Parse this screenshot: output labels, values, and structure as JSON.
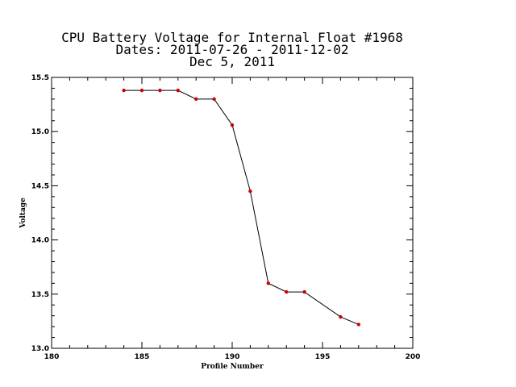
{
  "chart_data": {
    "type": "line",
    "title_lines": [
      "CPU Battery Voltage for Internal Float #1968",
      "Dates:  2011-07-26 -  2011-12-02",
      "Dec  5, 2011"
    ],
    "xlabel": "Profile Number",
    "ylabel": "Voltage",
    "xlim": [
      180,
      200
    ],
    "ylim": [
      13.0,
      15.5
    ],
    "xticks": [
      180,
      185,
      190,
      195,
      200
    ],
    "xtick_labels": [
      "180",
      "185",
      "190",
      "195",
      "200"
    ],
    "yticks": [
      13.0,
      13.5,
      14.0,
      14.5,
      15.0,
      15.5
    ],
    "ytick_labels": [
      "13.0",
      "13.5",
      "14.0",
      "14.5",
      "15.0",
      "15.5"
    ],
    "x_minor_step": 1,
    "y_minor_step": 0.1,
    "grid": false,
    "legend": "none",
    "series": [
      {
        "x": [
          184,
          185,
          186,
          187,
          188,
          189,
          190,
          191,
          192,
          193,
          194,
          196,
          197
        ],
        "y": [
          15.38,
          15.38,
          15.38,
          15.38,
          15.3,
          15.3,
          15.06,
          14.45,
          13.6,
          13.52,
          13.52,
          13.29,
          13.22
        ],
        "line_color": "#000000",
        "marker_color": "#cc0000"
      }
    ]
  }
}
